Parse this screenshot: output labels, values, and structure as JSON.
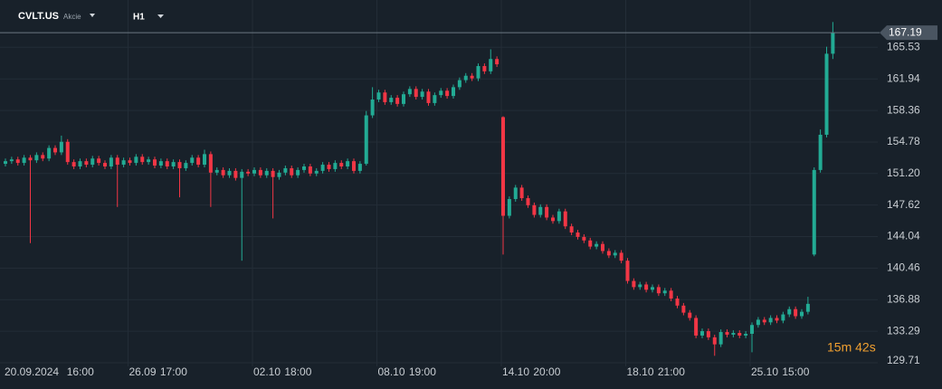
{
  "chart_data": {
    "type": "candlestick",
    "symbol": "CVLT.US",
    "asset_class": "Akcie",
    "timeframe": "H1",
    "countdown": "15m 42s",
    "last_price": 167.19,
    "up_color": "#22ab94",
    "down_color": "#f23645",
    "grid": true,
    "ylim": [
      129.3,
      170.9
    ],
    "yticks": [
      129.71,
      133.29,
      136.88,
      140.46,
      144.04,
      147.62,
      {
        "value": 151.2,
        "label": "151.20"
      },
      154.78,
      158.36,
      161.94,
      165.53
    ],
    "categories": [
      "20.09.2024",
      null,
      null,
      null,
      null,
      null,
      null,
      null,
      null,
      null,
      "16:00",
      null,
      null,
      null,
      null,
      null,
      null,
      null,
      null,
      null,
      "26.09",
      null,
      null,
      null,
      null,
      "17:00",
      null,
      null,
      null,
      null,
      null,
      null,
      null,
      null,
      null,
      null,
      null,
      null,
      null,
      null,
      "02.10",
      null,
      null,
      null,
      null,
      "18:00",
      null,
      null,
      null,
      null,
      null,
      null,
      null,
      null,
      null,
      null,
      null,
      null,
      null,
      null,
      "08.10",
      null,
      null,
      null,
      null,
      "19:00",
      null,
      null,
      null,
      null,
      null,
      null,
      null,
      null,
      null,
      null,
      null,
      null,
      null,
      null,
      "14.10",
      null,
      null,
      null,
      null,
      "20:00",
      null,
      null,
      null,
      null,
      null,
      null,
      null,
      null,
      null,
      null,
      null,
      null,
      null,
      null,
      "18.10",
      null,
      null,
      null,
      null,
      "21:00",
      null,
      null,
      null,
      null,
      null,
      null,
      null,
      null,
      null,
      null,
      null,
      null,
      null,
      null,
      "25.10",
      null,
      null,
      null,
      null,
      "15:00",
      null,
      null,
      null,
      null,
      null,
      null,
      null,
      null
    ],
    "candles": [
      [
        152.3,
        152.9,
        152.0,
        152.6
      ],
      [
        152.6,
        153.1,
        152.3,
        152.8
      ],
      [
        152.8,
        153.1,
        152.1,
        152.4
      ],
      [
        152.4,
        153.3,
        152.1,
        153.0
      ],
      [
        153.0,
        153.3,
        143.3,
        152.7
      ],
      [
        152.7,
        153.6,
        152.4,
        153.3
      ],
      [
        153.3,
        153.6,
        152.6,
        152.9
      ],
      [
        152.9,
        154.4,
        152.6,
        154.1
      ],
      [
        154.1,
        154.4,
        153.3,
        153.6
      ],
      [
        153.6,
        155.5,
        153.3,
        154.8
      ],
      [
        154.8,
        155.1,
        152.2,
        152.5
      ],
      [
        152.5,
        152.8,
        151.7,
        152.0
      ],
      [
        152.0,
        152.9,
        151.7,
        152.6
      ],
      [
        152.6,
        152.9,
        151.9,
        152.2
      ],
      [
        152.2,
        153.2,
        151.9,
        152.9
      ],
      [
        152.9,
        153.2,
        152.1,
        152.4
      ],
      [
        152.4,
        152.7,
        151.7,
        152.0
      ],
      [
        152.0,
        153.3,
        151.7,
        153.0
      ],
      [
        153.0,
        153.3,
        147.4,
        152.2
      ],
      [
        152.2,
        153.0,
        151.9,
        152.7
      ],
      [
        152.7,
        153.0,
        152.1,
        152.4
      ],
      [
        152.4,
        153.4,
        152.1,
        153.1
      ],
      [
        153.1,
        153.4,
        152.2,
        152.5
      ],
      [
        152.5,
        153.1,
        152.2,
        152.8
      ],
      [
        152.8,
        153.1,
        151.8,
        152.1
      ],
      [
        152.1,
        152.9,
        151.8,
        152.6
      ],
      [
        152.6,
        152.9,
        151.7,
        152.0
      ],
      [
        152.0,
        152.8,
        151.7,
        152.5
      ],
      [
        152.5,
        152.8,
        148.5,
        151.8
      ],
      [
        151.8,
        152.7,
        151.5,
        152.4
      ],
      [
        152.4,
        153.3,
        152.1,
        153.0
      ],
      [
        153.0,
        153.3,
        151.9,
        152.2
      ],
      [
        152.2,
        153.9,
        151.9,
        153.4
      ],
      [
        153.4,
        153.7,
        147.4,
        151.3
      ],
      [
        151.3,
        151.9,
        151.0,
        151.6
      ],
      [
        151.6,
        151.9,
        150.7,
        151.0
      ],
      [
        151.0,
        151.8,
        150.7,
        151.5
      ],
      [
        151.5,
        151.8,
        150.4,
        150.7
      ],
      [
        150.7,
        151.7,
        141.3,
        151.4
      ],
      [
        151.4,
        151.7,
        150.9,
        151.2
      ],
      [
        151.2,
        151.9,
        150.9,
        151.6
      ],
      [
        151.6,
        151.9,
        150.7,
        151.0
      ],
      [
        151.0,
        151.8,
        150.7,
        151.5
      ],
      [
        151.5,
        151.8,
        146.1,
        150.8
      ],
      [
        150.8,
        151.6,
        150.5,
        151.3
      ],
      [
        151.3,
        152.1,
        151.0,
        151.8
      ],
      [
        151.8,
        152.1,
        150.7,
        151.0
      ],
      [
        151.0,
        151.9,
        150.7,
        151.6
      ],
      [
        151.6,
        152.3,
        151.3,
        152.0
      ],
      [
        152.0,
        152.3,
        150.9,
        151.2
      ],
      [
        151.2,
        151.8,
        150.9,
        151.5
      ],
      [
        151.5,
        152.5,
        151.2,
        152.2
      ],
      [
        152.2,
        152.5,
        151.4,
        151.7
      ],
      [
        151.7,
        152.7,
        151.4,
        152.4
      ],
      [
        152.4,
        152.7,
        151.7,
        152.0
      ],
      [
        152.0,
        152.9,
        151.7,
        152.6
      ],
      [
        152.6,
        152.9,
        151.2,
        151.5
      ],
      [
        151.5,
        152.6,
        151.2,
        152.3
      ],
      [
        152.3,
        158.3,
        152.1,
        157.8
      ],
      [
        157.8,
        161.0,
        157.5,
        159.6
      ],
      [
        159.6,
        160.7,
        159.3,
        160.4
      ],
      [
        160.4,
        160.7,
        159.0,
        159.3
      ],
      [
        159.3,
        160.1,
        159.0,
        159.8
      ],
      [
        159.8,
        160.1,
        158.8,
        159.1
      ],
      [
        159.1,
        160.5,
        158.8,
        160.2
      ],
      [
        160.2,
        161.1,
        159.9,
        160.8
      ],
      [
        160.8,
        161.1,
        159.6,
        159.9
      ],
      [
        159.9,
        160.8,
        159.6,
        160.5
      ],
      [
        160.5,
        160.8,
        158.9,
        159.2
      ],
      [
        159.2,
        160.4,
        158.9,
        160.1
      ],
      [
        160.1,
        160.9,
        159.8,
        160.6
      ],
      [
        160.6,
        160.9,
        159.7,
        160.0
      ],
      [
        160.0,
        161.3,
        159.7,
        161.0
      ],
      [
        161.0,
        162.1,
        160.7,
        161.8
      ],
      [
        161.8,
        162.6,
        161.5,
        162.3
      ],
      [
        162.3,
        162.6,
        161.7,
        162.0
      ],
      [
        162.0,
        163.7,
        161.7,
        163.4
      ],
      [
        163.4,
        163.7,
        162.5,
        162.8
      ],
      [
        162.8,
        165.3,
        162.5,
        164.2
      ],
      [
        164.2,
        164.5,
        163.3,
        163.6
      ],
      [
        157.6,
        157.7,
        142.0,
        146.4
      ],
      [
        146.4,
        148.6,
        146.1,
        148.3
      ],
      [
        148.3,
        149.9,
        148.0,
        149.6
      ],
      [
        149.6,
        149.9,
        148.1,
        148.4
      ],
      [
        148.4,
        148.7,
        147.3,
        147.6
      ],
      [
        147.6,
        147.9,
        146.2,
        146.5
      ],
      [
        146.5,
        147.7,
        146.2,
        147.4
      ],
      [
        147.4,
        147.7,
        145.9,
        146.2
      ],
      [
        146.2,
        146.5,
        145.5,
        145.8
      ],
      [
        145.8,
        147.2,
        145.5,
        146.9
      ],
      [
        146.9,
        147.2,
        144.9,
        145.2
      ],
      [
        145.2,
        145.5,
        144.2,
        144.5
      ],
      [
        144.5,
        144.8,
        143.7,
        144.0
      ],
      [
        144.0,
        144.3,
        143.3,
        143.6
      ],
      [
        143.6,
        143.9,
        142.6,
        142.9
      ],
      [
        142.9,
        143.5,
        142.6,
        143.2
      ],
      [
        143.2,
        143.5,
        142.1,
        142.4
      ],
      [
        142.4,
        142.7,
        141.6,
        141.9
      ],
      [
        141.9,
        142.5,
        141.6,
        142.2
      ],
      [
        142.2,
        142.5,
        141.0,
        141.3
      ],
      [
        141.3,
        141.6,
        138.7,
        139.0
      ],
      [
        139.0,
        139.3,
        138.0,
        138.3
      ],
      [
        138.3,
        138.9,
        138.0,
        138.6
      ],
      [
        138.6,
        138.9,
        137.7,
        138.0
      ],
      [
        138.0,
        138.6,
        137.7,
        138.3
      ],
      [
        138.3,
        138.6,
        137.3,
        137.6
      ],
      [
        137.6,
        138.2,
        137.3,
        137.9
      ],
      [
        137.9,
        138.2,
        136.7,
        137.0
      ],
      [
        137.0,
        137.3,
        135.9,
        136.2
      ],
      [
        136.2,
        136.5,
        135.1,
        135.4
      ],
      [
        135.4,
        135.7,
        134.5,
        134.8
      ],
      [
        134.8,
        135.1,
        132.5,
        132.8
      ],
      [
        132.8,
        133.6,
        132.5,
        133.3
      ],
      [
        133.3,
        133.6,
        132.3,
        132.6
      ],
      [
        132.6,
        132.9,
        130.5,
        131.8
      ],
      [
        131.8,
        133.5,
        131.5,
        133.2
      ],
      [
        133.2,
        133.5,
        132.6,
        132.9
      ],
      [
        132.9,
        133.4,
        132.6,
        133.1
      ],
      [
        133.1,
        133.4,
        132.5,
        132.8
      ],
      [
        132.8,
        133.3,
        132.5,
        133.0
      ],
      [
        133.0,
        134.3,
        130.9,
        134.0
      ],
      [
        134.0,
        134.9,
        133.7,
        134.6
      ],
      [
        134.6,
        134.9,
        134.0,
        134.3
      ],
      [
        134.3,
        135.1,
        134.0,
        134.8
      ],
      [
        134.8,
        135.1,
        134.2,
        134.5
      ],
      [
        134.5,
        135.5,
        134.2,
        135.2
      ],
      [
        135.2,
        136.1,
        134.9,
        135.8
      ],
      [
        135.8,
        136.1,
        134.7,
        135.0
      ],
      [
        135.0,
        135.8,
        134.7,
        135.5
      ],
      [
        135.5,
        137.2,
        135.2,
        136.4
      ],
      [
        142.0,
        151.9,
        141.8,
        151.6
      ],
      [
        151.6,
        156.2,
        151.3,
        155.6
      ],
      [
        155.6,
        165.6,
        155.3,
        164.8
      ],
      [
        164.8,
        168.4,
        164.2,
        167.19
      ]
    ]
  }
}
